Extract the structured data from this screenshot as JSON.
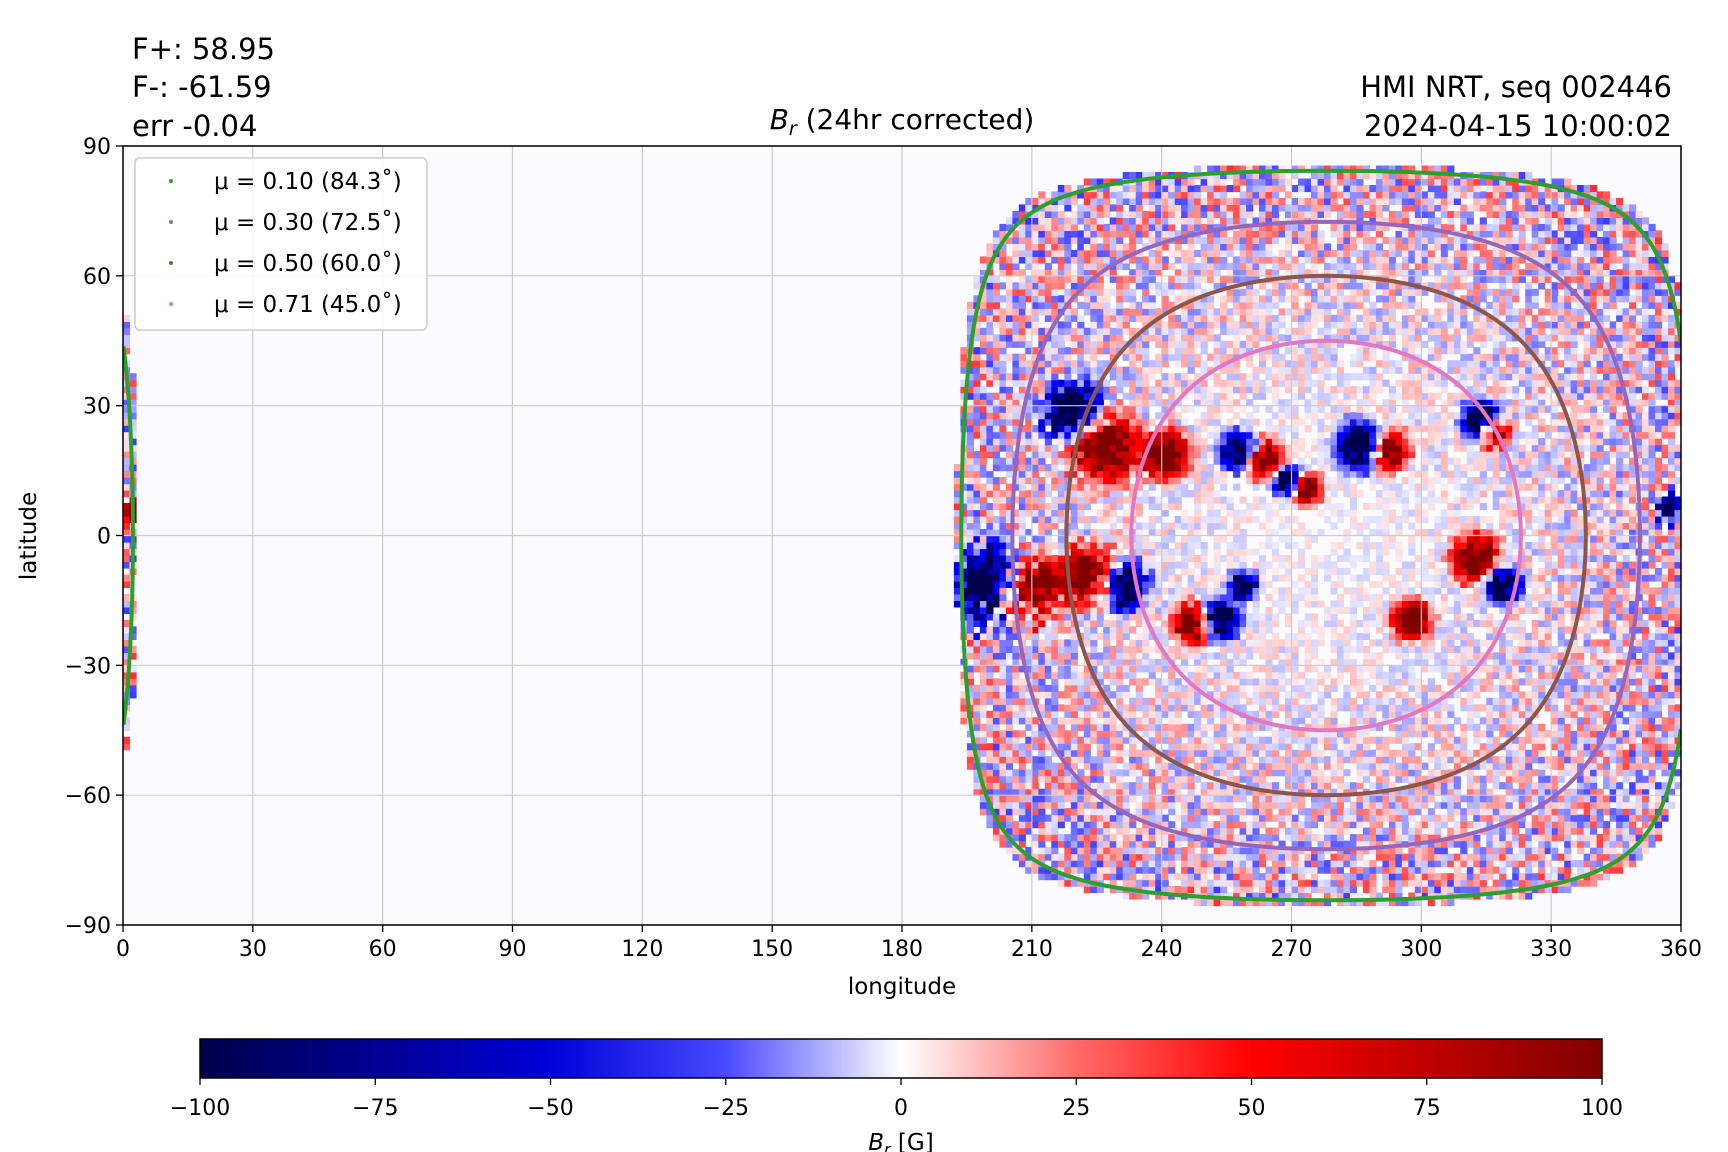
{
  "stats": {
    "fplus": "F+: 58.95",
    "fminus": "F-: -61.59",
    "err": "err -0.04"
  },
  "header": {
    "source": "HMI NRT, seq 002446",
    "timestamp": "2024-04-15 10:00:02"
  },
  "colors": {
    "negative": "#00004c",
    "zero": "#ffffff",
    "positive": "#800000",
    "background": "#fbfbfe",
    "grid": "#cccccc"
  },
  "chart_data": {
    "type": "heatmap",
    "title": "B_r (24hr corrected)",
    "title_parts": {
      "symbol": "B",
      "sub": "r",
      "rest": " (24hr corrected)"
    },
    "xlabel": "longitude",
    "ylabel": "latitude",
    "xlim": [
      0,
      360
    ],
    "ylim": [
      -90,
      90
    ],
    "xticks": [
      0,
      30,
      60,
      90,
      120,
      150,
      180,
      210,
      240,
      270,
      300,
      330,
      360
    ],
    "yticks": [
      -90,
      -60,
      -30,
      0,
      30,
      60,
      90
    ],
    "xtick_labels": [
      "0",
      "30",
      "60",
      "90",
      "120",
      "150",
      "180",
      "210",
      "240",
      "270",
      "300",
      "330",
      "360"
    ],
    "ytick_labels": [
      "−90",
      "−60",
      "−30",
      "0",
      "30",
      "60",
      "90"
    ],
    "grid": true,
    "legend_position": "top-left",
    "disk_center": {
      "lon": 278,
      "lat": 0
    },
    "series": [
      {
        "name": "μ = 0.10 (84.3˚)",
        "color": "#2ca02c",
        "angle_deg": 84.3
      },
      {
        "name": "μ = 0.30 (72.5˚)",
        "color": "#9467bd",
        "angle_deg": 72.5
      },
      {
        "name": "μ = 0.50 (60.0˚)",
        "color": "#8c564b",
        "angle_deg": 60.0
      },
      {
        "name": "μ = 0.71 (45.0˚)",
        "color": "#e377c2",
        "angle_deg": 45.0
      }
    ],
    "active_regions": [
      {
        "lon": 219,
        "lat": 28,
        "sign": -1,
        "size": 6
      },
      {
        "lon": 226,
        "lat": 20,
        "sign": 1,
        "size": 7
      },
      {
        "lon": 240,
        "lat": 18,
        "sign": 1,
        "size": 5
      },
      {
        "lon": 257,
        "lat": 19,
        "sign": -1,
        "size": 4
      },
      {
        "lon": 263,
        "lat": 17,
        "sign": 1,
        "size": 4
      },
      {
        "lon": 285,
        "lat": 20,
        "sign": -1,
        "size": 5
      },
      {
        "lon": 292,
        "lat": 19,
        "sign": 1,
        "size": 4
      },
      {
        "lon": 268,
        "lat": 12,
        "sign": -1,
        "size": 3
      },
      {
        "lon": 273,
        "lat": 10,
        "sign": 1,
        "size": 3
      },
      {
        "lon": 313,
        "lat": 26,
        "sign": -1,
        "size": 4
      },
      {
        "lon": 316,
        "lat": 23,
        "sign": 1,
        "size": 3
      },
      {
        "lon": 200,
        "lat": -12,
        "sign": -1,
        "size": 8
      },
      {
        "lon": 208,
        "lat": -13,
        "sign": 1,
        "size": 7
      },
      {
        "lon": 222,
        "lat": -10,
        "sign": 1,
        "size": 6
      },
      {
        "lon": 230,
        "lat": -12,
        "sign": -1,
        "size": 5
      },
      {
        "lon": 246,
        "lat": -21,
        "sign": 1,
        "size": 4
      },
      {
        "lon": 253,
        "lat": -20,
        "sign": -1,
        "size": 4
      },
      {
        "lon": 312,
        "lat": -6,
        "sign": 1,
        "size": 5
      },
      {
        "lon": 318,
        "lat": -12,
        "sign": -1,
        "size": 4
      },
      {
        "lon": 297,
        "lat": -20,
        "sign": 1,
        "size": 4
      },
      {
        "lon": 258,
        "lat": -12,
        "sign": -1,
        "size": 3
      },
      {
        "lon": 357,
        "lat": 6,
        "sign": -1,
        "size": 3
      },
      {
        "lon": 1,
        "lat": 5,
        "sign": 1,
        "size": 3
      }
    ],
    "colorbar": {
      "label_parts": {
        "symbol": "B",
        "sub": "r",
        "rest": " [G]"
      },
      "range": [
        -100,
        100
      ],
      "ticks": [
        -100,
        -75,
        -50,
        -25,
        0,
        25,
        50,
        75,
        100
      ],
      "tick_labels": [
        "−100",
        "−75",
        "−50",
        "−25",
        "0",
        "25",
        "50",
        "75",
        "100"
      ]
    }
  }
}
